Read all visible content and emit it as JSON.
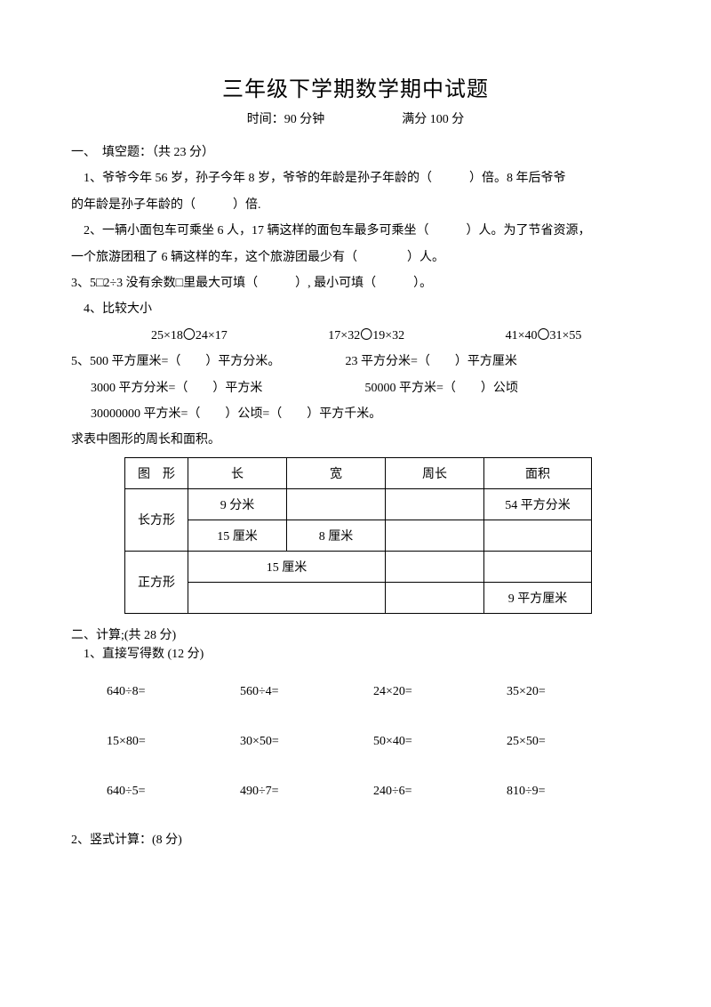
{
  "title": "三年级下学期数学期中试题",
  "subtitle": {
    "time_label": "时间：90 分钟",
    "score_label": "满分 100 分"
  },
  "section1_heading": "一、　填空题：（共 23 分）",
  "q1": "　1、爷爷今年 56 岁，孙子今年 8 岁，爷爷的年龄是孙子年龄的（　　　）倍。8 年后爷爷",
  "q1b": "的年龄是孙子年龄的（　　　）倍.",
  "q2": "　2、一辆小面包车可乘坐 6 人，17 辆这样的面包车最多可乘坐（　　　）人。为了节省资源，",
  "q2b": "一个旅游团租了 6 辆这样的车，这个旅游团最少有（　　　　）人。",
  "q3": "3、5□2÷3 没有余数□里最大可填（　　　）, 最小可填（　　　）。",
  "q4": "　4、比较大小",
  "compare": {
    "a": "25×18〇24×17",
    "b": "17×32〇19×32",
    "c": "41×40〇31×55"
  },
  "q5_rows": [
    {
      "left": "5、500 平方厘米=（　　）平方分米。",
      "right": "23 平方分米=（　　）平方厘米"
    },
    {
      "left": "3000 平方分米=（　　）平方米",
      "right": "50000 平方米=（　　）公顷"
    },
    {
      "left": "30000000 平方米=（　　）公顷=（　　）平方千米。",
      "right": ""
    }
  ],
  "table_caption": "求表中图形的周长和面积。",
  "table": {
    "headers": {
      "shape": "图　形",
      "len": "长",
      "wid": "宽",
      "peri": "周长",
      "area": "面积"
    },
    "row_rect_label": "长方形",
    "row_rect": [
      {
        "len": "9 分米",
        "wid": "",
        "peri": "",
        "area": "54 平方分米"
      },
      {
        "len": "15 厘米",
        "wid": "8 厘米",
        "peri": "",
        "area": ""
      }
    ],
    "row_sq_label": "正方形",
    "row_sq": [
      {
        "lenwid": "15 厘米",
        "peri": "",
        "area": ""
      },
      {
        "lenwid": "",
        "peri": "",
        "area": "9 平方厘米"
      }
    ]
  },
  "section2_heading": "二、计算;(共 28 分)",
  "calc1_heading": "　1、直接写得数  (12 分)",
  "calc_items": [
    "640÷8=",
    "560÷4=",
    "24×20=",
    "35×20=",
    "15×80=",
    "30×50=",
    "50×40=",
    "25×50=",
    "640÷5=",
    "490÷7=",
    "240÷6=",
    "810÷9="
  ],
  "calc2_heading": "2、竖式计算：(8 分)"
}
